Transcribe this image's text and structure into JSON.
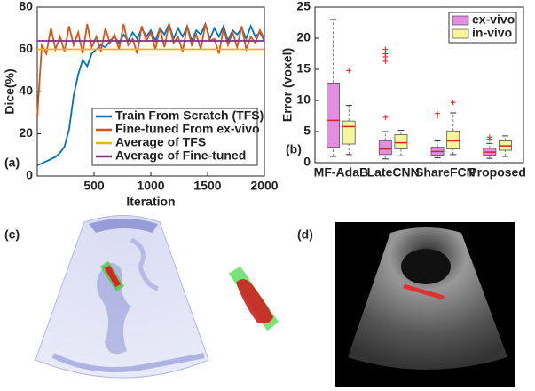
{
  "chart_data": [
    {
      "type": "line",
      "panel_label": "(a)",
      "xlabel": "Iteration",
      "ylabel": "Dice(%)",
      "xlim": [
        0,
        2000
      ],
      "xticks": [
        500,
        1000,
        1500,
        2000
      ],
      "ylim": [
        0,
        80
      ],
      "yticks": [
        0,
        20,
        40,
        60,
        80
      ],
      "legend": "lower right",
      "x": [
        0,
        40,
        80,
        120,
        160,
        200,
        240,
        280,
        320,
        360,
        400,
        440,
        480,
        520,
        560,
        600,
        640,
        680,
        720,
        760,
        800,
        840,
        880,
        920,
        960,
        1000,
        1040,
        1080,
        1120,
        1160,
        1200,
        1240,
        1280,
        1320,
        1360,
        1400,
        1440,
        1480,
        1520,
        1560,
        1600,
        1640,
        1680,
        1720,
        1760,
        1800,
        1840,
        1880,
        1920,
        1960,
        2000
      ],
      "series": [
        {
          "name": "Train From Scratch (TFS)",
          "color": "#0072bd",
          "values": [
            5,
            6,
            7,
            8,
            9,
            11,
            14,
            22,
            38,
            48,
            55,
            52,
            58,
            60,
            62,
            61,
            64,
            66,
            63,
            67,
            64,
            68,
            65,
            70,
            66,
            69,
            64,
            70,
            67,
            72,
            65,
            70,
            66,
            71,
            64,
            69,
            67,
            72,
            65,
            70,
            66,
            71,
            64,
            69,
            67,
            70,
            65,
            71,
            66,
            68,
            64
          ]
        },
        {
          "name": "Fine-tuned From ex-vivo",
          "color": "#d95319",
          "values": [
            28,
            62,
            58,
            70,
            60,
            66,
            59,
            71,
            62,
            68,
            58,
            72,
            61,
            66,
            59,
            70,
            63,
            67,
            60,
            72,
            62,
            65,
            58,
            71,
            64,
            68,
            60,
            70,
            61,
            72,
            63,
            66,
            59,
            71,
            62,
            67,
            60,
            72,
            64,
            65,
            58,
            70,
            62,
            68,
            61,
            71,
            60,
            66,
            63,
            69,
            65
          ]
        },
        {
          "name": "Average of TFS",
          "color": "#edb120",
          "x": [
            0,
            2000
          ],
          "values": [
            60,
            60
          ]
        },
        {
          "name": "Average of Fine-tuned",
          "color": "#7e2f8e",
          "x": [
            0,
            2000
          ],
          "values": [
            64,
            64
          ]
        }
      ]
    },
    {
      "type": "box",
      "panel_label": "(b)",
      "ylabel": "Error (voxel)",
      "categories": [
        "MF-AdaB",
        "LateCNN",
        "ShareFCN",
        "Proposed"
      ],
      "ylim": [
        0,
        25
      ],
      "yticks": [
        0,
        5,
        10,
        15,
        20,
        25
      ],
      "legend": "upper right",
      "series": [
        {
          "name": "ex-vivo",
          "color": "#e38de3",
          "boxes": [
            {
              "min": 1,
              "q1": 2.5,
              "median": 6.8,
              "q3": 12.8,
              "max": 23,
              "outliers": []
            },
            {
              "min": 0.6,
              "q1": 1.3,
              "median": 2.2,
              "q3": 3.5,
              "max": 5,
              "outliers": [
                7.3,
                16.3,
                17,
                17.5,
                18.2
              ]
            },
            {
              "min": 0.8,
              "q1": 1.2,
              "median": 1.8,
              "q3": 2.5,
              "max": 3.5,
              "outliers": [
                7.5,
                7.9
              ]
            },
            {
              "min": 0.7,
              "q1": 1.2,
              "median": 1.7,
              "q3": 2.3,
              "max": 3.1,
              "outliers": [
                3.8,
                4.1
              ]
            }
          ]
        },
        {
          "name": "in-vivo",
          "color": "#f5f59a",
          "boxes": [
            {
              "min": 1.3,
              "q1": 3,
              "median": 5.8,
              "q3": 6.7,
              "max": 9.2,
              "outliers": [
                14.8
              ]
            },
            {
              "min": 1.1,
              "q1": 2.2,
              "median": 3.2,
              "q3": 4.5,
              "max": 5.2,
              "outliers": []
            },
            {
              "min": 1.3,
              "q1": 2.2,
              "median": 3.5,
              "q3": 5.1,
              "max": 8,
              "outliers": [
                9.7
              ]
            },
            {
              "min": 1,
              "q1": 2,
              "median": 2.7,
              "q3": 3.5,
              "max": 4.3,
              "outliers": []
            }
          ]
        }
      ]
    }
  ],
  "image_panels": [
    {
      "label": "(c)"
    },
    {
      "label": "(d)"
    }
  ]
}
